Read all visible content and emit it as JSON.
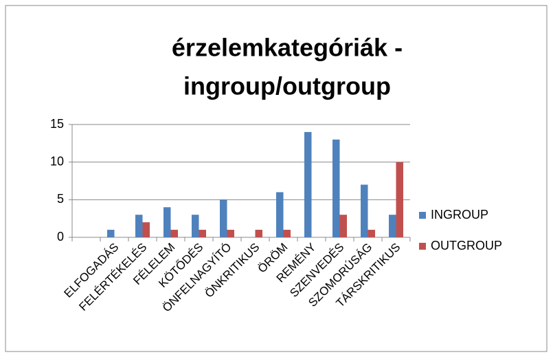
{
  "chart_data": {
    "type": "bar",
    "title": [
      "érzelemkategóriák -",
      "ingroup/outgroup"
    ],
    "categories": [
      null,
      "ELFOGADÁS",
      "FELÉRTÉKELÉS",
      "FÉLELEM",
      "KÖTŐDÉS",
      "ÖNFELNAGYÍTÓ",
      "ÖNKRITIKUS",
      "ÖRÖM",
      "REMÉNY",
      "SZENVEDÉS",
      "SZOMORÚSÁG",
      "TÁRSKRITIKUS"
    ],
    "series": [
      {
        "name": "INGROUP",
        "color": "#4f81bd",
        "values": [
          0,
          1,
          3,
          4,
          3,
          5,
          0,
          6,
          14,
          13,
          7,
          3
        ]
      },
      {
        "name": "OUTGROUP",
        "color": "#c0504d",
        "values": [
          0,
          0,
          2,
          1,
          1,
          1,
          1,
          1,
          0,
          3,
          1,
          10
        ]
      }
    ],
    "ylim": [
      0,
      15
    ],
    "yticks": [
      0,
      5,
      10,
      15
    ],
    "grid": true,
    "legend": "right"
  }
}
